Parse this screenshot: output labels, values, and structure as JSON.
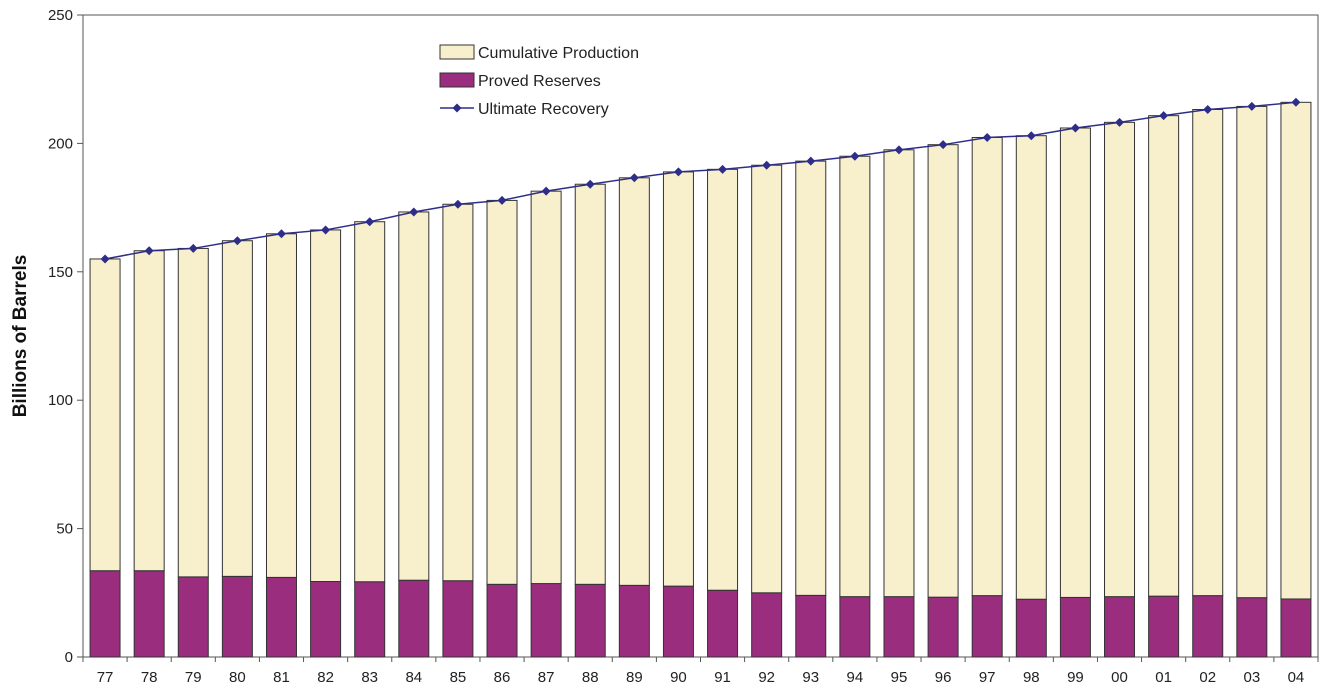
{
  "chart_data": {
    "type": "bar",
    "stacked": true,
    "title": "",
    "xlabel": "",
    "ylabel": "Billions of Barrels",
    "ylim": [
      0,
      250
    ],
    "yticks": [
      0,
      50,
      100,
      150,
      200,
      250
    ],
    "grid": false,
    "legend_position": "top-left",
    "categories": [
      "77",
      "78",
      "79",
      "80",
      "81",
      "82",
      "83",
      "84",
      "85",
      "86",
      "87",
      "88",
      "89",
      "90",
      "91",
      "92",
      "93",
      "94",
      "95",
      "96",
      "97",
      "98",
      "99",
      "00",
      "01",
      "02",
      "03",
      "04"
    ],
    "series": [
      {
        "name": "Proved Reserves",
        "kind": "bar",
        "color": "#9b2d7f",
        "values": [
          33.6,
          33.6,
          31.2,
          31.4,
          31.0,
          29.4,
          29.3,
          29.9,
          29.7,
          28.3,
          28.6,
          28.3,
          27.9,
          27.6,
          26.0,
          25.0,
          24.0,
          23.5,
          23.5,
          23.3,
          23.9,
          22.5,
          23.2,
          23.5,
          23.7,
          23.9,
          23.1,
          22.6
        ]
      },
      {
        "name": "Cumulative Production",
        "kind": "bar",
        "color": "#f8efcd",
        "values": [
          121.4,
          124.6,
          127.9,
          130.7,
          133.8,
          136.9,
          140.2,
          143.4,
          146.6,
          149.5,
          152.8,
          155.8,
          158.7,
          161.3,
          163.9,
          166.5,
          169.1,
          171.5,
          174.0,
          176.2,
          178.4,
          180.5,
          182.8,
          184.7,
          187.1,
          189.3,
          191.3,
          193.4
        ]
      },
      {
        "name": "Ultimate Recovery",
        "kind": "line",
        "color": "#2e2e8a",
        "values": [
          155.0,
          158.2,
          159.1,
          162.1,
          164.8,
          166.3,
          169.5,
          173.3,
          176.3,
          177.8,
          181.4,
          184.1,
          186.6,
          188.9,
          189.9,
          191.5,
          193.1,
          195.0,
          197.5,
          199.5,
          202.3,
          203.0,
          206.0,
          208.2,
          210.8,
          213.2,
          214.4,
          216.0
        ]
      }
    ]
  }
}
